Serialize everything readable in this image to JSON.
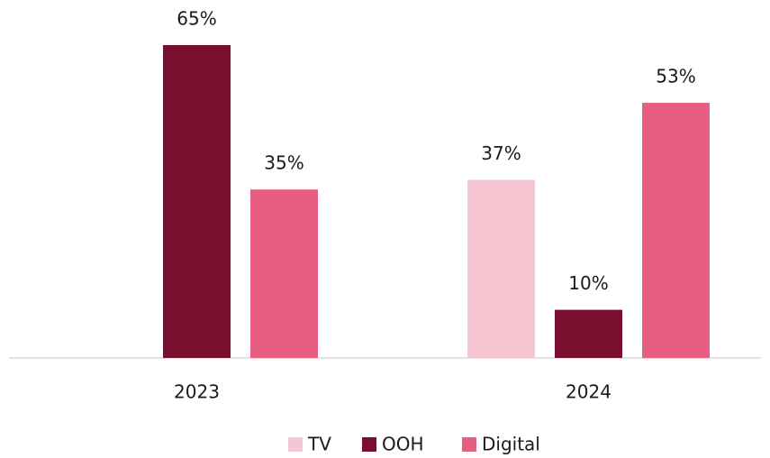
{
  "chart_data": {
    "type": "bar",
    "categories": [
      "2023",
      "2024"
    ],
    "series": [
      {
        "name": "TV",
        "color": "#f7c6d3",
        "values": [
          null,
          37
        ],
        "value_labels": [
          null,
          "37%"
        ]
      },
      {
        "name": "OOH",
        "color": "#7a0e2e",
        "values": [
          65,
          10
        ],
        "value_labels": [
          "65%",
          "10%"
        ]
      },
      {
        "name": "Digital",
        "color": "#e85d82",
        "values": [
          35,
          53
        ],
        "value_labels": [
          "35%",
          "53%"
        ]
      }
    ],
    "legend": "bottom"
  }
}
